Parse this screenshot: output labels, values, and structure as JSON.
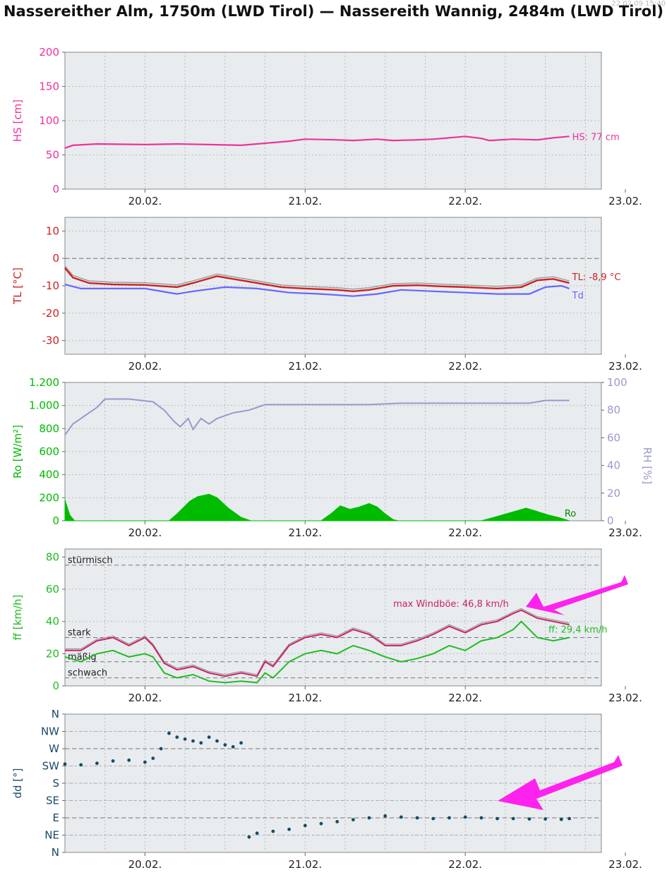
{
  "title": "Nassereither Alm, 1750m (LWD Tirol) — Nassereith Wannig, 2484m (LWD Tirol)",
  "timestamp": "22.02.09 15:40",
  "colors": {
    "hs": "#ee3399",
    "tl": "#cc2222",
    "td": "#6666ff",
    "ro": "#00bb00",
    "rh": "#9999cc",
    "ff": "#22bb22",
    "gust": "#cc2266",
    "dd": "#1a4a66",
    "arrow": "#ff22ee",
    "grid": "#bbbbbb",
    "plot_bg": "#e8ecef"
  },
  "chart_data": [
    {
      "type": "line",
      "id": "hs",
      "xticklabels": [
        "20.02.",
        "21.02.",
        "22.02.",
        "23.02."
      ],
      "xlim": [
        -0.5,
        2.85
      ],
      "ylabel": "HS [cm]",
      "ylim": [
        0,
        200
      ],
      "yticks": [
        0,
        50,
        100,
        150,
        200
      ],
      "series": [
        {
          "name": "HS",
          "values": [
            [
              -0.5,
              60
            ],
            [
              -0.45,
              64
            ],
            [
              -0.3,
              66
            ],
            [
              0,
              65
            ],
            [
              0.2,
              66
            ],
            [
              0.4,
              65
            ],
            [
              0.6,
              64
            ],
            [
              0.75,
              67
            ],
            [
              0.9,
              70
            ],
            [
              1.0,
              73
            ],
            [
              1.2,
              72
            ],
            [
              1.3,
              71
            ],
            [
              1.45,
              73
            ],
            [
              1.55,
              71
            ],
            [
              1.7,
              72
            ],
            [
              1.8,
              73
            ],
            [
              1.9,
              75
            ],
            [
              2.0,
              77
            ],
            [
              2.1,
              74
            ],
            [
              2.15,
              71
            ],
            [
              2.3,
              73
            ],
            [
              2.45,
              72
            ],
            [
              2.55,
              75
            ],
            [
              2.65,
              77
            ]
          ]
        }
      ],
      "annotation": "HS: 77 cm"
    },
    {
      "type": "line",
      "id": "tl",
      "xticklabels": [
        "20.02.",
        "21.02.",
        "22.02.",
        "23.02."
      ],
      "xlim": [
        -0.5,
        2.85
      ],
      "ylabel": "TL [°C]",
      "ylim": [
        -35,
        15
      ],
      "yticks": [
        -30,
        -20,
        -10,
        0,
        10
      ],
      "series": [
        {
          "name": "TL",
          "values": [
            [
              -0.5,
              -3.5
            ],
            [
              -0.45,
              -7
            ],
            [
              -0.35,
              -9
            ],
            [
              -0.2,
              -9.5
            ],
            [
              0,
              -9.7
            ],
            [
              0.2,
              -10.5
            ],
            [
              0.3,
              -9
            ],
            [
              0.45,
              -6.5
            ],
            [
              0.55,
              -7.5
            ],
            [
              0.7,
              -9
            ],
            [
              0.85,
              -10.5
            ],
            [
              1.0,
              -11
            ],
            [
              1.2,
              -11.5
            ],
            [
              1.3,
              -12
            ],
            [
              1.4,
              -11.5
            ],
            [
              1.55,
              -10
            ],
            [
              1.7,
              -9.8
            ],
            [
              1.85,
              -10.2
            ],
            [
              2.0,
              -10.5
            ],
            [
              2.2,
              -11
            ],
            [
              2.35,
              -10.5
            ],
            [
              2.45,
              -8
            ],
            [
              2.55,
              -7.5
            ],
            [
              2.65,
              -9
            ]
          ]
        },
        {
          "name": "Td",
          "values": [
            [
              -0.5,
              -9.5
            ],
            [
              -0.4,
              -11
            ],
            [
              -0.2,
              -11
            ],
            [
              0,
              -11
            ],
            [
              0.2,
              -13
            ],
            [
              0.3,
              -12
            ],
            [
              0.5,
              -10.5
            ],
            [
              0.7,
              -11
            ],
            [
              0.9,
              -12.5
            ],
            [
              1.1,
              -13
            ],
            [
              1.3,
              -13.8
            ],
            [
              1.45,
              -13
            ],
            [
              1.6,
              -11.5
            ],
            [
              1.8,
              -12
            ],
            [
              2.0,
              -12.5
            ],
            [
              2.2,
              -13
            ],
            [
              2.4,
              -13
            ],
            [
              2.5,
              -10.5
            ],
            [
              2.6,
              -10
            ],
            [
              2.65,
              -11
            ]
          ]
        }
      ],
      "annotation_tl": "TL: -8,9 °C",
      "annotation_td": "Td"
    },
    {
      "type": "area",
      "id": "ro",
      "xticklabels": [
        "20.02.",
        "21.02.",
        "22.02.",
        "23.02."
      ],
      "xlim": [
        -0.5,
        2.85
      ],
      "ylabel": "Ro [W/m²]",
      "ylim": [
        0,
        1200
      ],
      "yticks": [
        0,
        200,
        400,
        600,
        800,
        1000,
        1200
      ],
      "yticklabels": [
        "0",
        "200",
        "400",
        "600",
        "800",
        "1.000",
        "1.200"
      ],
      "y2label": "RH [%]",
      "y2lim": [
        0,
        100
      ],
      "y2ticks": [
        0,
        20,
        40,
        60,
        80,
        100
      ],
      "series": [
        {
          "name": "Ro",
          "values": [
            [
              -0.5,
              180
            ],
            [
              -0.47,
              50
            ],
            [
              -0.44,
              0
            ],
            [
              0.15,
              0
            ],
            [
              0.2,
              60
            ],
            [
              0.28,
              170
            ],
            [
              0.33,
              210
            ],
            [
              0.4,
              230
            ],
            [
              0.45,
              200
            ],
            [
              0.52,
              110
            ],
            [
              0.6,
              30
            ],
            [
              0.66,
              0
            ],
            [
              1.1,
              0
            ],
            [
              1.16,
              60
            ],
            [
              1.22,
              130
            ],
            [
              1.28,
              100
            ],
            [
              1.34,
              120
            ],
            [
              1.4,
              150
            ],
            [
              1.45,
              120
            ],
            [
              1.5,
              60
            ],
            [
              1.55,
              10
            ],
            [
              1.58,
              0
            ],
            [
              2.1,
              0
            ],
            [
              2.18,
              30
            ],
            [
              2.28,
              70
            ],
            [
              2.38,
              110
            ],
            [
              2.45,
              80
            ],
            [
              2.52,
              50
            ],
            [
              2.58,
              30
            ],
            [
              2.65,
              0
            ]
          ]
        },
        {
          "name": "RH",
          "values": [
            [
              -0.5,
              62
            ],
            [
              -0.45,
              70
            ],
            [
              -0.4,
              74
            ],
            [
              -0.35,
              78
            ],
            [
              -0.3,
              82
            ],
            [
              -0.25,
              88
            ],
            [
              -0.1,
              88
            ],
            [
              0.05,
              86
            ],
            [
              0.12,
              80
            ],
            [
              0.18,
              72
            ],
            [
              0.22,
              68
            ],
            [
              0.27,
              74
            ],
            [
              0.3,
              66
            ],
            [
              0.35,
              74
            ],
            [
              0.4,
              70
            ],
            [
              0.45,
              74
            ],
            [
              0.55,
              78
            ],
            [
              0.65,
              80
            ],
            [
              0.75,
              84
            ],
            [
              0.85,
              84
            ],
            [
              1.0,
              84
            ],
            [
              1.2,
              84
            ],
            [
              1.4,
              84
            ],
            [
              1.6,
              85
            ],
            [
              1.8,
              85
            ],
            [
              2.0,
              85
            ],
            [
              2.2,
              85
            ],
            [
              2.4,
              85
            ],
            [
              2.5,
              87
            ],
            [
              2.65,
              87
            ]
          ]
        }
      ],
      "annotation": "Ro"
    },
    {
      "type": "line",
      "id": "ff",
      "xticklabels": [
        "20.02.",
        "21.02.",
        "22.02.",
        "23.02."
      ],
      "xlim": [
        -0.5,
        2.85
      ],
      "ylabel": "ff [km/h]",
      "ylim": [
        0,
        85
      ],
      "yticks": [
        0,
        20,
        40,
        60,
        80
      ],
      "levels": [
        {
          "label": "stürmisch",
          "value": 75
        },
        {
          "label": "stark",
          "value": 30
        },
        {
          "label": "mäßig",
          "value": 15
        },
        {
          "label": "schwach",
          "value": 5
        }
      ],
      "series": [
        {
          "name": "ff",
          "values": [
            [
              -0.5,
              18
            ],
            [
              -0.4,
              15
            ],
            [
              -0.3,
              20
            ],
            [
              -0.2,
              22
            ],
            [
              -0.1,
              18
            ],
            [
              0,
              20
            ],
            [
              0.05,
              18
            ],
            [
              0.12,
              8
            ],
            [
              0.2,
              5
            ],
            [
              0.3,
              7
            ],
            [
              0.4,
              3
            ],
            [
              0.5,
              2
            ],
            [
              0.6,
              3
            ],
            [
              0.7,
              2
            ],
            [
              0.75,
              8
            ],
            [
              0.8,
              5
            ],
            [
              0.9,
              15
            ],
            [
              1.0,
              20
            ],
            [
              1.1,
              22
            ],
            [
              1.2,
              20
            ],
            [
              1.3,
              25
            ],
            [
              1.4,
              22
            ],
            [
              1.5,
              18
            ],
            [
              1.6,
              15
            ],
            [
              1.7,
              17
            ],
            [
              1.8,
              20
            ],
            [
              1.9,
              25
            ],
            [
              2.0,
              22
            ],
            [
              2.1,
              28
            ],
            [
              2.2,
              30
            ],
            [
              2.3,
              35
            ],
            [
              2.35,
              40
            ],
            [
              2.45,
              30
            ],
            [
              2.55,
              28
            ],
            [
              2.65,
              30
            ]
          ]
        },
        {
          "name": "gust",
          "values": [
            [
              -0.5,
              22
            ],
            [
              -0.4,
              22
            ],
            [
              -0.3,
              28
            ],
            [
              -0.2,
              30
            ],
            [
              -0.1,
              25
            ],
            [
              0,
              30
            ],
            [
              0.05,
              25
            ],
            [
              0.12,
              14
            ],
            [
              0.2,
              10
            ],
            [
              0.3,
              12
            ],
            [
              0.4,
              8
            ],
            [
              0.5,
              6
            ],
            [
              0.6,
              8
            ],
            [
              0.7,
              6
            ],
            [
              0.75,
              15
            ],
            [
              0.8,
              12
            ],
            [
              0.9,
              25
            ],
            [
              1.0,
              30
            ],
            [
              1.1,
              32
            ],
            [
              1.2,
              30
            ],
            [
              1.3,
              35
            ],
            [
              1.4,
              32
            ],
            [
              1.5,
              25
            ],
            [
              1.6,
              25
            ],
            [
              1.7,
              28
            ],
            [
              1.8,
              32
            ],
            [
              1.9,
              37
            ],
            [
              2.0,
              33
            ],
            [
              2.1,
              38
            ],
            [
              2.2,
              40
            ],
            [
              2.3,
              45
            ],
            [
              2.35,
              47
            ],
            [
              2.45,
              42
            ],
            [
              2.55,
              40
            ],
            [
              2.65,
              38
            ]
          ]
        }
      ],
      "annotation_gust": "max Windböe: 46,8 km/h",
      "annotation_ff": "ff: 29,4 km/h"
    },
    {
      "type": "scatter",
      "id": "dd",
      "xticklabels": [
        "20.02.",
        "21.02.",
        "22.02.",
        "23.02."
      ],
      "xlim": [
        -0.5,
        2.85
      ],
      "ylabel": "dd [°]",
      "ylim": [
        0,
        360
      ],
      "yticks": [
        0,
        45,
        90,
        135,
        180,
        225,
        270,
        315,
        360
      ],
      "yticklabels": [
        "N",
        "NE",
        "E",
        "SE",
        "S",
        "SW",
        "W",
        "NW",
        "N"
      ],
      "series": [
        {
          "name": "dd",
          "values": [
            [
              -0.5,
              230
            ],
            [
              -0.4,
              228
            ],
            [
              -0.3,
              232
            ],
            [
              -0.2,
              238
            ],
            [
              -0.1,
              240
            ],
            [
              0,
              235
            ],
            [
              0.05,
              245
            ],
            [
              0.1,
              270
            ],
            [
              0.15,
              310
            ],
            [
              0.2,
              300
            ],
            [
              0.25,
              295
            ],
            [
              0.3,
              290
            ],
            [
              0.35,
              285
            ],
            [
              0.4,
              300
            ],
            [
              0.45,
              290
            ],
            [
              0.5,
              280
            ],
            [
              0.55,
              275
            ],
            [
              0.6,
              285
            ],
            [
              0.65,
              40
            ],
            [
              0.7,
              50
            ],
            [
              0.8,
              55
            ],
            [
              0.9,
              60
            ],
            [
              1.0,
              70
            ],
            [
              1.1,
              75
            ],
            [
              1.2,
              80
            ],
            [
              1.3,
              85
            ],
            [
              1.4,
              90
            ],
            [
              1.5,
              95
            ],
            [
              1.6,
              92
            ],
            [
              1.7,
              90
            ],
            [
              1.8,
              88
            ],
            [
              1.9,
              90
            ],
            [
              2.0,
              92
            ],
            [
              2.1,
              90
            ],
            [
              2.2,
              88
            ],
            [
              2.3,
              88
            ],
            [
              2.4,
              87
            ],
            [
              2.5,
              87
            ],
            [
              2.6,
              86
            ],
            [
              2.65,
              88
            ]
          ]
        }
      ]
    }
  ]
}
